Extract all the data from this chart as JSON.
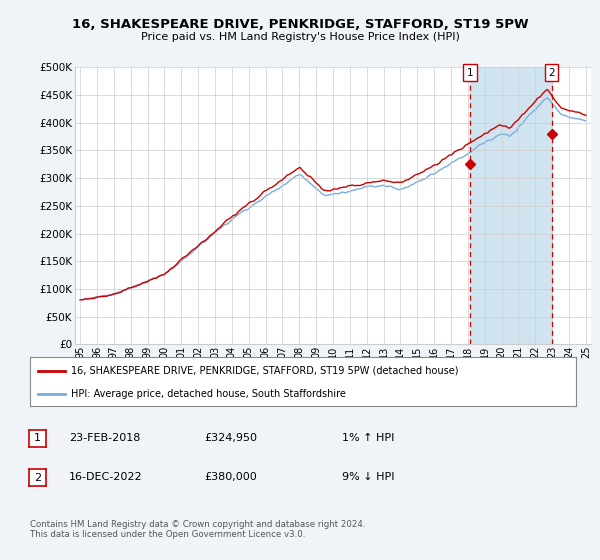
{
  "title": "16, SHAKESPEARE DRIVE, PENKRIDGE, STAFFORD, ST19 5PW",
  "subtitle": "Price paid vs. HM Land Registry's House Price Index (HPI)",
  "ylabel_ticks": [
    "£0",
    "£50K",
    "£100K",
    "£150K",
    "£200K",
    "£250K",
    "£300K",
    "£350K",
    "£400K",
    "£450K",
    "£500K"
  ],
  "ytick_values": [
    0,
    50000,
    100000,
    150000,
    200000,
    250000,
    300000,
    350000,
    400000,
    450000,
    500000
  ],
  "ylim": [
    0,
    500000
  ],
  "xlim_start": 1994.7,
  "xlim_end": 2025.3,
  "hpi_color": "#7aaddd",
  "price_color": "#cc0000",
  "sale1_date": 2018.14,
  "sale1_price": 324950,
  "sale2_date": 2022.96,
  "sale2_price": 380000,
  "legend_line1": "16, SHAKESPEARE DRIVE, PENKRIDGE, STAFFORD, ST19 5PW (detached house)",
  "legend_line2": "HPI: Average price, detached house, South Staffordshire",
  "annotation1_date_str": "23-FEB-2018",
  "annotation1_price_str": "£324,950",
  "annotation1_hpi_str": "1% ↑ HPI",
  "annotation2_date_str": "16-DEC-2022",
  "annotation2_price_str": "£380,000",
  "annotation2_hpi_str": "9% ↓ HPI",
  "footer": "Contains HM Land Registry data © Crown copyright and database right 2024.\nThis data is licensed under the Open Government Licence v3.0.",
  "background_color": "#f0f4f8",
  "plot_background": "#ffffff",
  "grid_color": "#cccccc",
  "span_color": "#d0e4f0"
}
